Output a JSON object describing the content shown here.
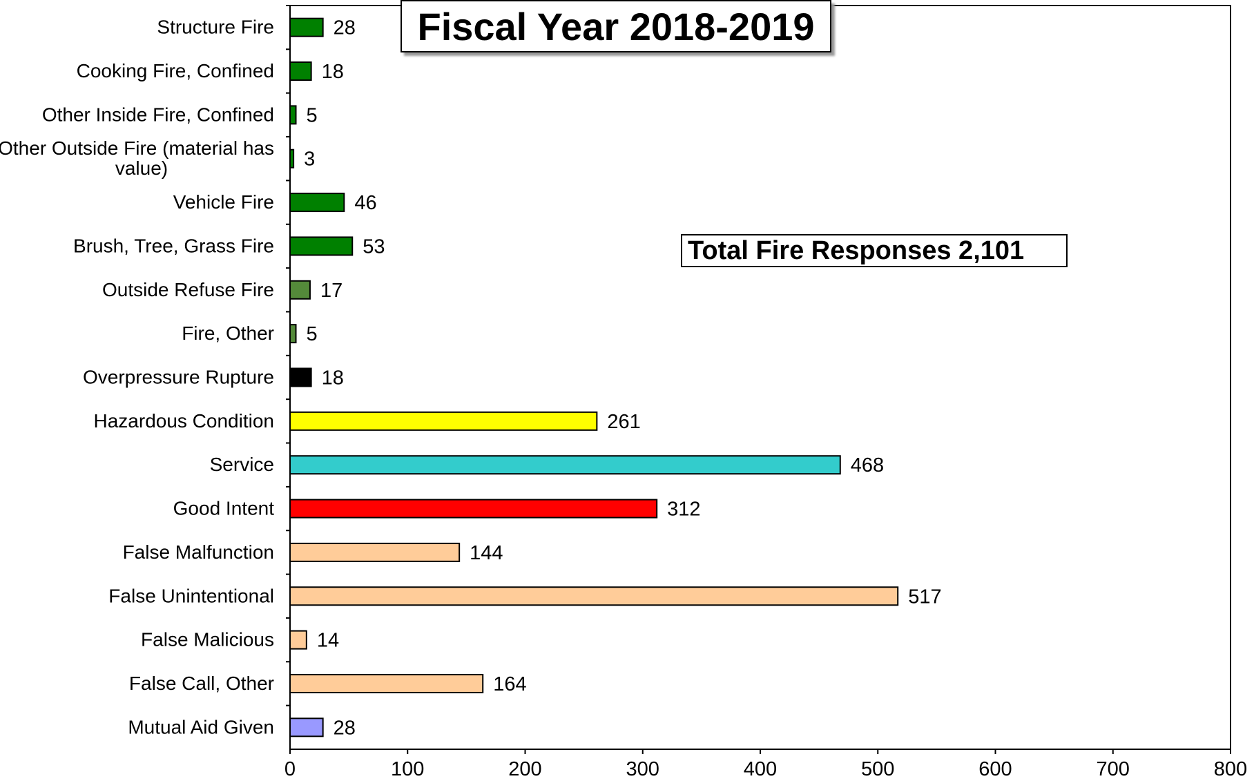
{
  "chart_data": {
    "type": "bar",
    "orientation": "horizontal",
    "title": "Fiscal Year 2018-2019",
    "annotation": "Total Fire Responses 2,101",
    "categories": [
      [
        "Structure Fire"
      ],
      [
        "Cooking Fire, Confined"
      ],
      [
        "Other Inside Fire, Confined"
      ],
      [
        "Other Outside Fire (material has",
        "value)"
      ],
      [
        "Vehicle Fire"
      ],
      [
        "Brush, Tree, Grass Fire"
      ],
      [
        "Outside Refuse Fire"
      ],
      [
        "Fire, Other"
      ],
      [
        "Overpressure Rupture"
      ],
      [
        "Hazardous Condition"
      ],
      [
        "Service"
      ],
      [
        "Good Intent"
      ],
      [
        "False Malfunction"
      ],
      [
        "False Unintentional"
      ],
      [
        "False Malicious"
      ],
      [
        "False Call, Other"
      ],
      [
        "Mutual Aid Given"
      ]
    ],
    "values": [
      28,
      18,
      5,
      3,
      46,
      53,
      17,
      5,
      18,
      261,
      468,
      312,
      144,
      517,
      14,
      164,
      28
    ],
    "value_labels": [
      "28",
      "18",
      "5",
      "3",
      "46",
      "53",
      "17",
      "5",
      "18",
      "261",
      "468",
      "312",
      "144",
      "517",
      "14",
      "164",
      "28"
    ],
    "colors": [
      "#008000",
      "#008000",
      "#008000",
      "#008000",
      "#008000",
      "#008000",
      "#548a3a",
      "#548a3a",
      "#000000",
      "#ffff00",
      "#33cccc",
      "#ff0000",
      "#ffcc99",
      "#ffcc99",
      "#ffcc99",
      "#ffcc99",
      "#9999ff"
    ],
    "xlim": [
      0,
      800
    ],
    "xticks": [
      0,
      100,
      200,
      300,
      400,
      500,
      600,
      700,
      800
    ],
    "grid": false,
    "legend": "none"
  }
}
